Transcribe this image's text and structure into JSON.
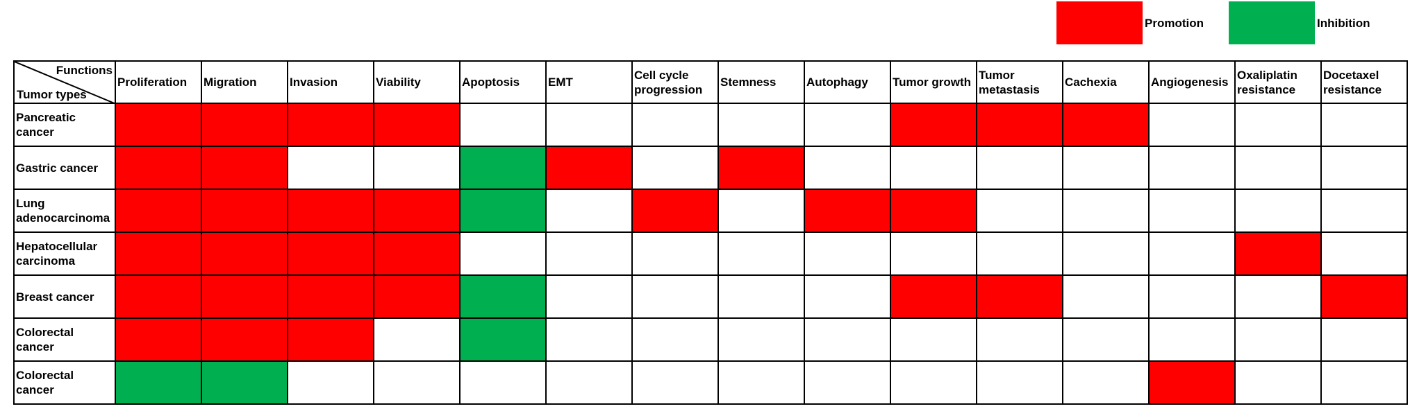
{
  "chart_data": {
    "type": "heatmap",
    "corner": {
      "column_axis_label": "Functions",
      "row_axis_label": "Tumor types"
    },
    "legend": [
      {
        "value": "P",
        "label": "Promotion",
        "color": "#ff0000"
      },
      {
        "value": "I",
        "label": "Inhibition",
        "color": "#00b050"
      }
    ],
    "columns": [
      "Proliferation",
      "Migration",
      "Invasion",
      "Viability",
      "Apoptosis",
      "EMT",
      "Cell cycle progression",
      "Stemness",
      "Autophagy",
      "Tumor growth",
      "Tumor metastasis",
      "Cachexia",
      "Angiogenesis",
      "Oxaliplatin resistance",
      "Docetaxel resistance"
    ],
    "rows": [
      {
        "label": "Pancreatic cancer",
        "cells": [
          "P",
          "P",
          "P",
          "P",
          "",
          "",
          "",
          "",
          "",
          "P",
          "P",
          "P",
          "",
          "",
          ""
        ]
      },
      {
        "label": "Gastric cancer",
        "cells": [
          "P",
          "P",
          "",
          "",
          "I",
          "P",
          "",
          "P",
          "",
          "",
          "",
          "",
          "",
          "",
          ""
        ]
      },
      {
        "label": "Lung adenocarcinoma",
        "cells": [
          "P",
          "P",
          "P",
          "P",
          "I",
          "",
          "P",
          "",
          "P",
          "P",
          "",
          "",
          "",
          "",
          ""
        ]
      },
      {
        "label": "Hepatocellular carcinoma",
        "cells": [
          "P",
          "P",
          "P",
          "P",
          "",
          "",
          "",
          "",
          "",
          "",
          "",
          "",
          "",
          "P",
          ""
        ]
      },
      {
        "label": "Breast cancer",
        "cells": [
          "P",
          "P",
          "P",
          "P",
          "I",
          "",
          "",
          "",
          "",
          "P",
          "P",
          "",
          "",
          "",
          "P"
        ]
      },
      {
        "label": "Colorectal cancer",
        "cells": [
          "P",
          "P",
          "P",
          "",
          "I",
          "",
          "",
          "",
          "",
          "",
          "",
          "",
          "",
          "",
          ""
        ]
      },
      {
        "label": "Colorectal cancer",
        "cells": [
          "I",
          "I",
          "",
          "",
          "",
          "",
          "",
          "",
          "",
          "",
          "",
          "",
          "P",
          "",
          ""
        ]
      }
    ]
  }
}
